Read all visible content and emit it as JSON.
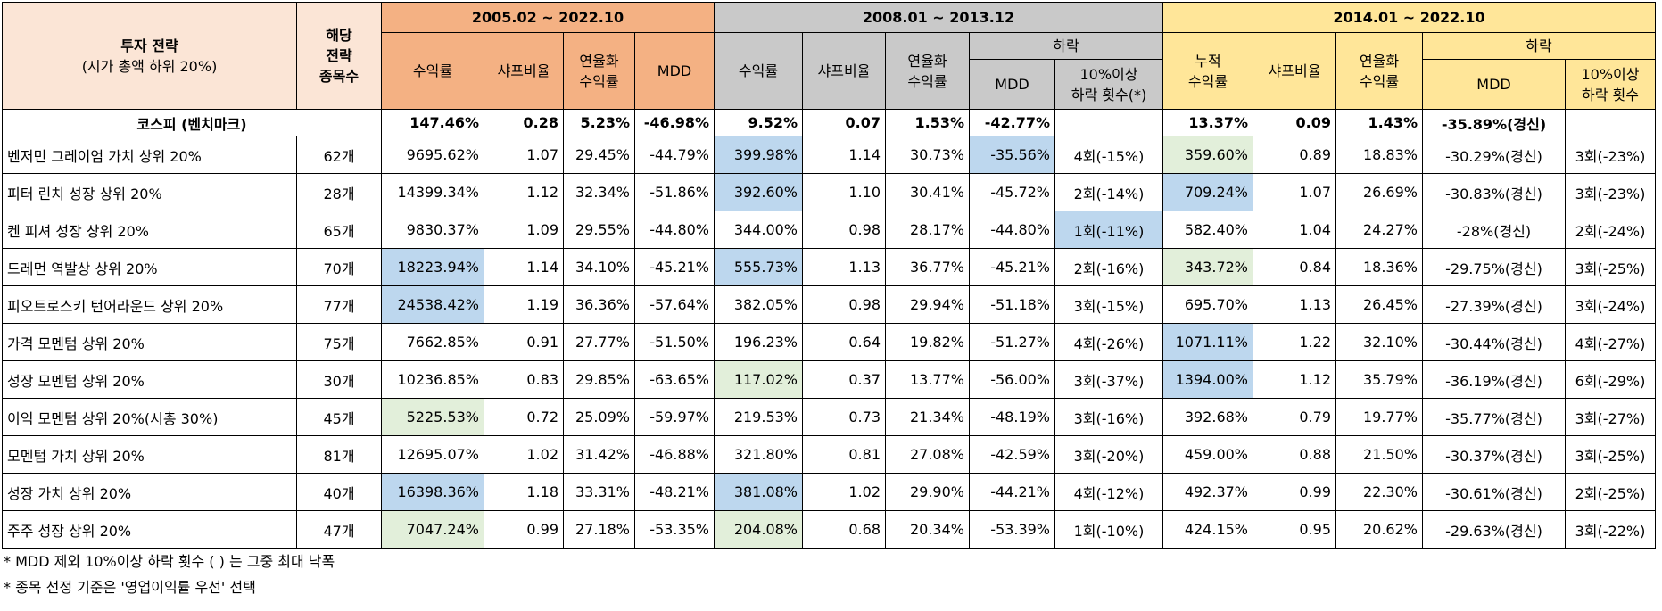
{
  "header": {
    "strategy": [
      "투자 전략",
      "(시가 총액 하위 20%)"
    ],
    "count": [
      "해당",
      "전략",
      "종목수"
    ],
    "groups": [
      {
        "period": "2005.02 ~ 2022.10",
        "columns": [
          [
            "수익률"
          ],
          [
            "샤프비율"
          ],
          [
            "연율화",
            "수익률"
          ],
          [
            "MDD"
          ]
        ]
      },
      {
        "period": "2008.01 ~ 2013.12",
        "columns": [
          [
            "수익률"
          ],
          [
            "샤프비율"
          ],
          [
            "연율화",
            "수익률"
          ]
        ],
        "drop": {
          "label": "하락",
          "columns": [
            [
              "MDD"
            ],
            [
              "10%이상",
              "하락 횟수(*)"
            ]
          ]
        }
      },
      {
        "period": "2014.01 ~ 2022.10",
        "columns": [
          [
            "누적",
            "수익률"
          ],
          [
            "샤프비율"
          ],
          [
            "연율화",
            "수익률"
          ]
        ],
        "drop": {
          "label": "하락",
          "columns": [
            [
              "MDD"
            ],
            [
              "10%이상",
              "하락 횟수"
            ]
          ]
        }
      }
    ]
  },
  "benchmark": {
    "label": "코스피 (벤치마크)",
    "values": [
      "147.46%",
      "0.28",
      "5.23%",
      "-46.98%",
      "9.52%",
      "0.07",
      "1.53%",
      "-42.77%",
      "13.37%",
      "0.09",
      "1.43%",
      "-35.89%(경신)"
    ]
  },
  "table": {
    "rows": [
      [
        "벤저민 그레이엄 가치 상위 20%",
        "62개",
        "9695.62%",
        "1.07",
        "29.45%",
        "-44.79%",
        "399.98%",
        "1.14",
        "30.73%",
        "-35.56%",
        "4회(-15%)",
        "359.60%",
        "0.89",
        "18.83%",
        "-30.29%(경신)",
        "3회(-23%)"
      ],
      [
        "피터 린치 성장 상위 20%",
        "28개",
        "14399.34%",
        "1.12",
        "32.34%",
        "-51.86%",
        "392.60%",
        "1.10",
        "30.41%",
        "-45.72%",
        "2회(-14%)",
        "709.24%",
        "1.07",
        "26.69%",
        "-30.83%(경신)",
        "3회(-23%)"
      ],
      [
        "켄 피셔 성장 상위 20%",
        "65개",
        "9830.37%",
        "1.09",
        "29.55%",
        "-44.80%",
        "344.00%",
        "0.98",
        "28.17%",
        "-44.80%",
        "1회(-11%)",
        "582.40%",
        "1.04",
        "24.27%",
        "-28%(경신)",
        "2회(-24%)"
      ],
      [
        "드레먼 역발상 상위 20%",
        "70개",
        "18223.94%",
        "1.14",
        "34.10%",
        "-45.21%",
        "555.73%",
        "1.13",
        "36.77%",
        "-45.21%",
        "2회(-16%)",
        "343.72%",
        "0.84",
        "18.36%",
        "-29.75%(경신)",
        "3회(-25%)"
      ],
      [
        "피오트로스키 턴어라운드 상위 20%",
        "77개",
        "24538.42%",
        "1.19",
        "36.36%",
        "-57.64%",
        "382.05%",
        "0.98",
        "29.94%",
        "-51.18%",
        "3회(-15%)",
        "695.70%",
        "1.13",
        "26.45%",
        "-27.39%(경신)",
        "3회(-24%)"
      ],
      [
        "가격 모멘텀 상위 20%",
        "75개",
        "7662.85%",
        "0.91",
        "27.77%",
        "-51.50%",
        "196.23%",
        "0.64",
        "19.82%",
        "-51.27%",
        "4회(-26%)",
        "1071.11%",
        "1.22",
        "32.10%",
        "-30.44%(경신)",
        "4회(-27%)"
      ],
      [
        "성장 모멘텀 상위 20%",
        "30개",
        "10236.85%",
        "0.83",
        "29.85%",
        "-63.65%",
        "117.02%",
        "0.37",
        "13.77%",
        "-56.00%",
        "3회(-37%)",
        "1394.00%",
        "1.12",
        "35.79%",
        "-36.19%(경신)",
        "6회(-29%)"
      ],
      [
        "이익 모멘텀 상위 20%(시총 30%)",
        "45개",
        "5225.53%",
        "0.72",
        "25.09%",
        "-59.97%",
        "219.53%",
        "0.73",
        "21.34%",
        "-48.19%",
        "3회(-16%)",
        "392.68%",
        "0.79",
        "19.77%",
        "-35.77%(경신)",
        "3회(-27%)"
      ],
      [
        "모멘텀 가치 상위 20%",
        "81개",
        "12695.07%",
        "1.02",
        "31.42%",
        "-46.88%",
        "321.80%",
        "0.81",
        "27.08%",
        "-42.59%",
        "3회(-20%)",
        "459.00%",
        "0.88",
        "21.50%",
        "-30.37%(경신)",
        "3회(-25%)"
      ],
      [
        "성장 가치 상위 20%",
        "40개",
        "16398.36%",
        "1.18",
        "33.31%",
        "-48.21%",
        "381.08%",
        "1.02",
        "29.90%",
        "-44.21%",
        "4회(-12%)",
        "492.37%",
        "0.99",
        "22.30%",
        "-30.61%(경신)",
        "2회(-25%)"
      ],
      [
        "주주 성장 상위 20%",
        "47개",
        "7047.24%",
        "0.99",
        "27.18%",
        "-53.35%",
        "204.08%",
        "0.68",
        "20.34%",
        "-53.39%",
        "1회(-10%)",
        "424.15%",
        "0.95",
        "20.62%",
        "-29.63%(경신)",
        "3회(-22%)"
      ]
    ]
  },
  "footnotes": [
    "* MDD 제외 10%이상 하락 횟수 ( ) 는 그중 최대 낙폭",
    "* 종목 선정 기준은 '영업이익률 우선' 선택"
  ]
}
